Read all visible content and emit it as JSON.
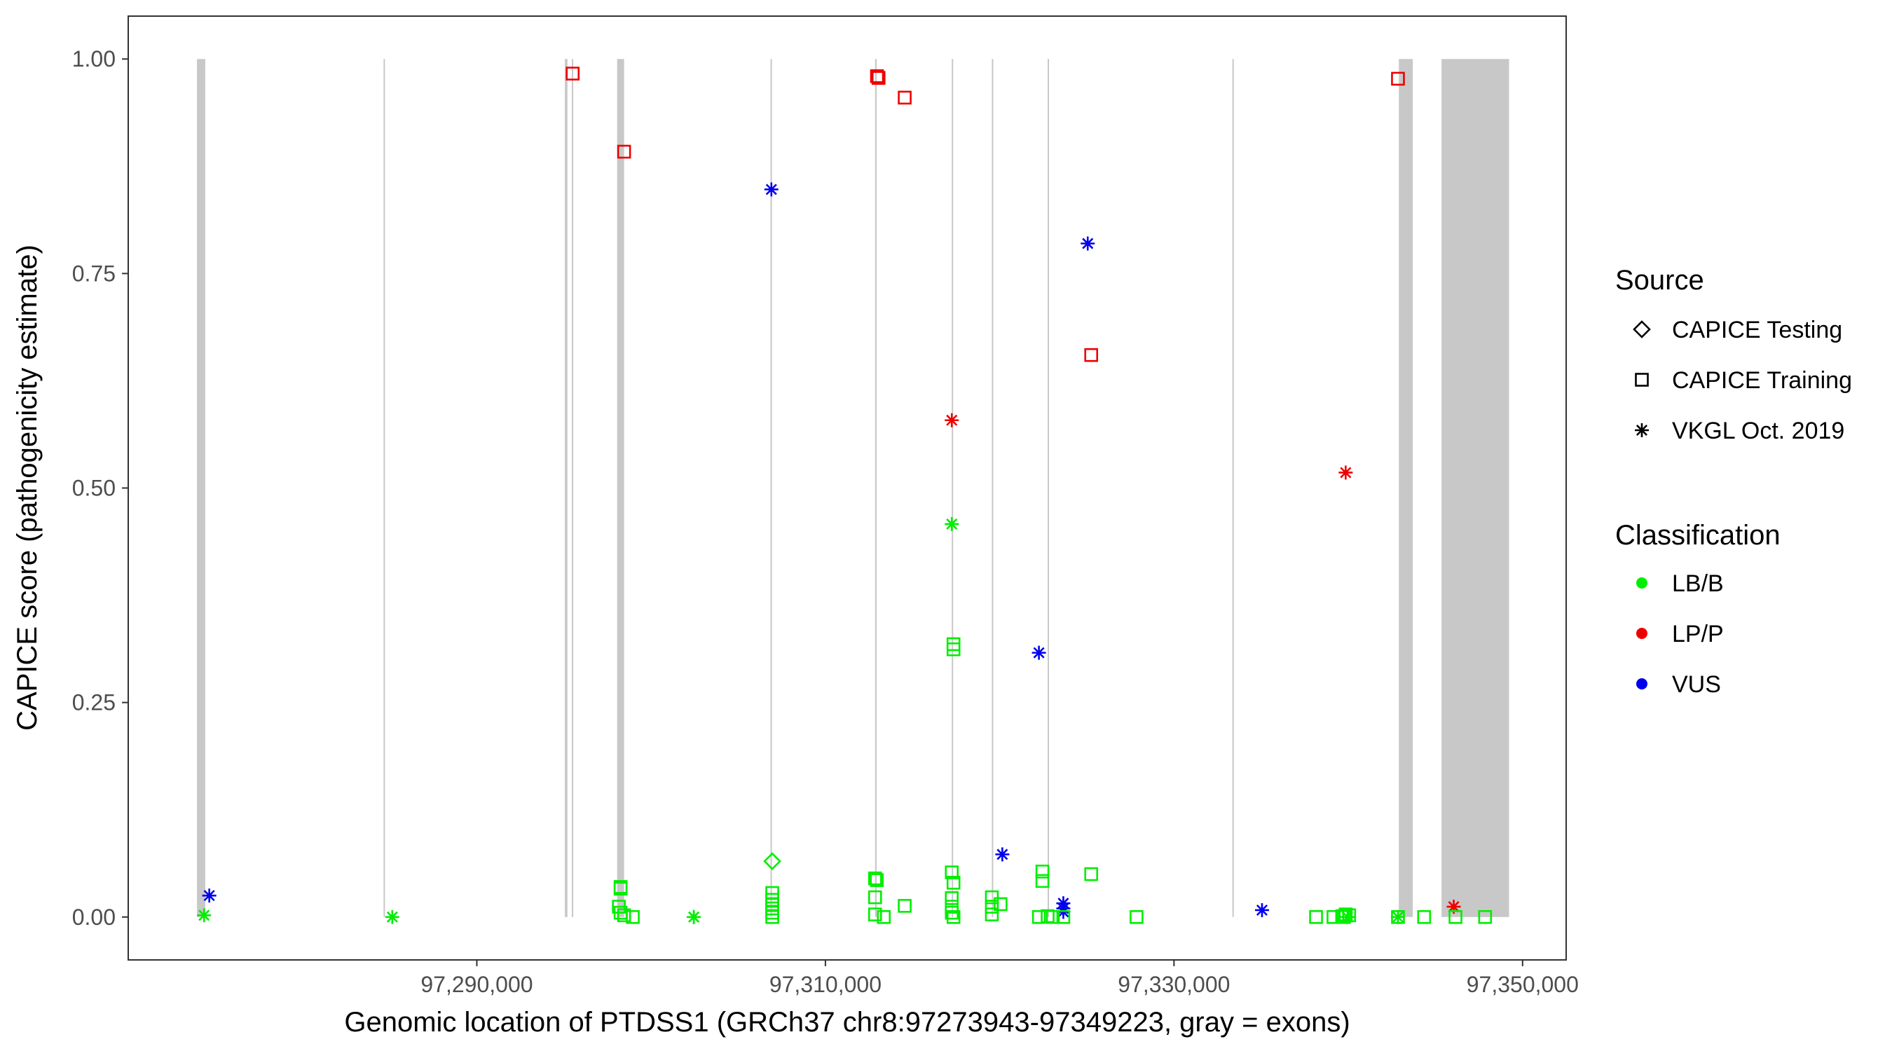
{
  "chart_data": {
    "type": "scatter",
    "title": "",
    "xlabel": "Genomic location of PTDSS1 (GRCh37 chr8:97273943-97349223, gray = exons)",
    "ylabel": "CAPICE score (pathogenicity estimate)",
    "xlim": [
      97270000,
      97352500
    ],
    "ylim": [
      -0.05,
      1.05
    ],
    "x_ticks": [
      97290000,
      97310000,
      97330000,
      97350000
    ],
    "x_tick_labels": [
      "97,290,000",
      "97,310,000",
      "97,330,000",
      "97,350,000"
    ],
    "y_ticks": [
      0,
      0.25,
      0.5,
      0.75,
      1
    ],
    "y_tick_labels": [
      "0.00",
      "0.25",
      "0.50",
      "0.75",
      "1.00"
    ],
    "grid": false,
    "exon_color": "#c8c8c8",
    "exons": [
      [
        97273943,
        97274420
      ],
      [
        97284650,
        97284730
      ],
      [
        97295050,
        97295200
      ],
      [
        97295450,
        97295530
      ],
      [
        97298050,
        97298450
      ],
      [
        97306850,
        97306930
      ],
      [
        97312850,
        97312940
      ],
      [
        97317250,
        97317330
      ],
      [
        97319550,
        97319630
      ],
      [
        97322750,
        97322830
      ],
      [
        97333350,
        97333430
      ],
      [
        97342900,
        97343700
      ],
      [
        97345350,
        97349223
      ]
    ],
    "shape_legend": {
      "title": "Source",
      "entries": [
        {
          "label": "CAPICE Testing",
          "shape": "diamond"
        },
        {
          "label": "CAPICE Training",
          "shape": "square"
        },
        {
          "label": "VKGL Oct. 2019",
          "shape": "asterisk"
        }
      ]
    },
    "color_legend": {
      "title": "Classification",
      "entries": [
        {
          "label": "LB/B",
          "color": "#00ee00"
        },
        {
          "label": "LP/P",
          "color": "#ee0000"
        },
        {
          "label": "VUS",
          "color": "#0000ee"
        }
      ]
    },
    "legend_position": "right",
    "series": [
      {
        "source": "CAPICE Training",
        "classification": "LP/P",
        "points": [
          [
            97295500,
            0.983
          ],
          [
            97298450,
            0.892
          ],
          [
            97312960,
            0.98
          ],
          [
            97313050,
            0.978
          ],
          [
            97314550,
            0.955
          ],
          [
            97325250,
            0.655
          ],
          [
            97342850,
            0.977
          ]
        ]
      },
      {
        "source": "VKGL Oct. 2019",
        "classification": "LP/P",
        "points": [
          [
            97317250,
            0.579
          ],
          [
            97339850,
            0.518
          ],
          [
            97346050,
            0.012
          ]
        ]
      },
      {
        "source": "VKGL Oct. 2019",
        "classification": "VUS",
        "points": [
          [
            97274650,
            0.025
          ],
          [
            97306900,
            0.848
          ],
          [
            97325050,
            0.785
          ],
          [
            97322250,
            0.308
          ],
          [
            97320150,
            0.073
          ],
          [
            97323650,
            0.016
          ],
          [
            97323650,
            0.01
          ],
          [
            97323650,
            0.006
          ],
          [
            97335050,
            0.008
          ]
        ]
      },
      {
        "source": "VKGL Oct. 2019",
        "classification": "LB/B",
        "points": [
          [
            97274350,
            0.002
          ],
          [
            97285150,
            0.0
          ],
          [
            97317250,
            0.458
          ],
          [
            97302450,
            0.0
          ],
          [
            97302450,
            0.0
          ],
          [
            97342850,
            0.0
          ],
          [
            97339950,
            0.0
          ]
        ]
      },
      {
        "source": "CAPICE Testing",
        "classification": "LB/B",
        "points": [
          [
            97306950,
            0.065
          ]
        ]
      },
      {
        "source": "CAPICE Training",
        "classification": "LB/B",
        "points": [
          [
            97298250,
            0.035
          ],
          [
            97298250,
            0.033
          ],
          [
            97298150,
            0.012
          ],
          [
            97298250,
            0.005
          ],
          [
            97298450,
            0.002
          ],
          [
            97298950,
            0.0
          ],
          [
            97306950,
            0.028
          ],
          [
            97306950,
            0.02
          ],
          [
            97306950,
            0.015
          ],
          [
            97306950,
            0.01
          ],
          [
            97306950,
            0.005
          ],
          [
            97306950,
            0.0
          ],
          [
            97312850,
            0.045
          ],
          [
            97312950,
            0.043
          ],
          [
            97312850,
            0.023
          ],
          [
            97312850,
            0.003
          ],
          [
            97313350,
            0.0
          ],
          [
            97314550,
            0.013
          ],
          [
            97317350,
            0.318
          ],
          [
            97317350,
            0.312
          ],
          [
            97317250,
            0.052
          ],
          [
            97317350,
            0.04
          ],
          [
            97317250,
            0.022
          ],
          [
            97317250,
            0.012
          ],
          [
            97317250,
            0.005
          ],
          [
            97317350,
            0.0
          ],
          [
            97319550,
            0.023
          ],
          [
            97319550,
            0.012
          ],
          [
            97320050,
            0.015
          ],
          [
            97319550,
            0.003
          ],
          [
            97322450,
            0.053
          ],
          [
            97322450,
            0.042
          ],
          [
            97322250,
            0.0
          ],
          [
            97322750,
            0.001
          ],
          [
            97323050,
            0.0
          ],
          [
            97323650,
            0.0
          ],
          [
            97325250,
            0.05
          ],
          [
            97327850,
            0.0
          ],
          [
            97338150,
            0.0
          ],
          [
            97339150,
            0.0
          ],
          [
            97339650,
            0.001
          ],
          [
            97339850,
            0.003
          ],
          [
            97340050,
            0.002
          ],
          [
            97339750,
            0.0
          ],
          [
            97342850,
            0.0
          ],
          [
            97344350,
            0.0
          ],
          [
            97346150,
            0.0
          ],
          [
            97347850,
            0.0
          ]
        ]
      }
    ]
  }
}
